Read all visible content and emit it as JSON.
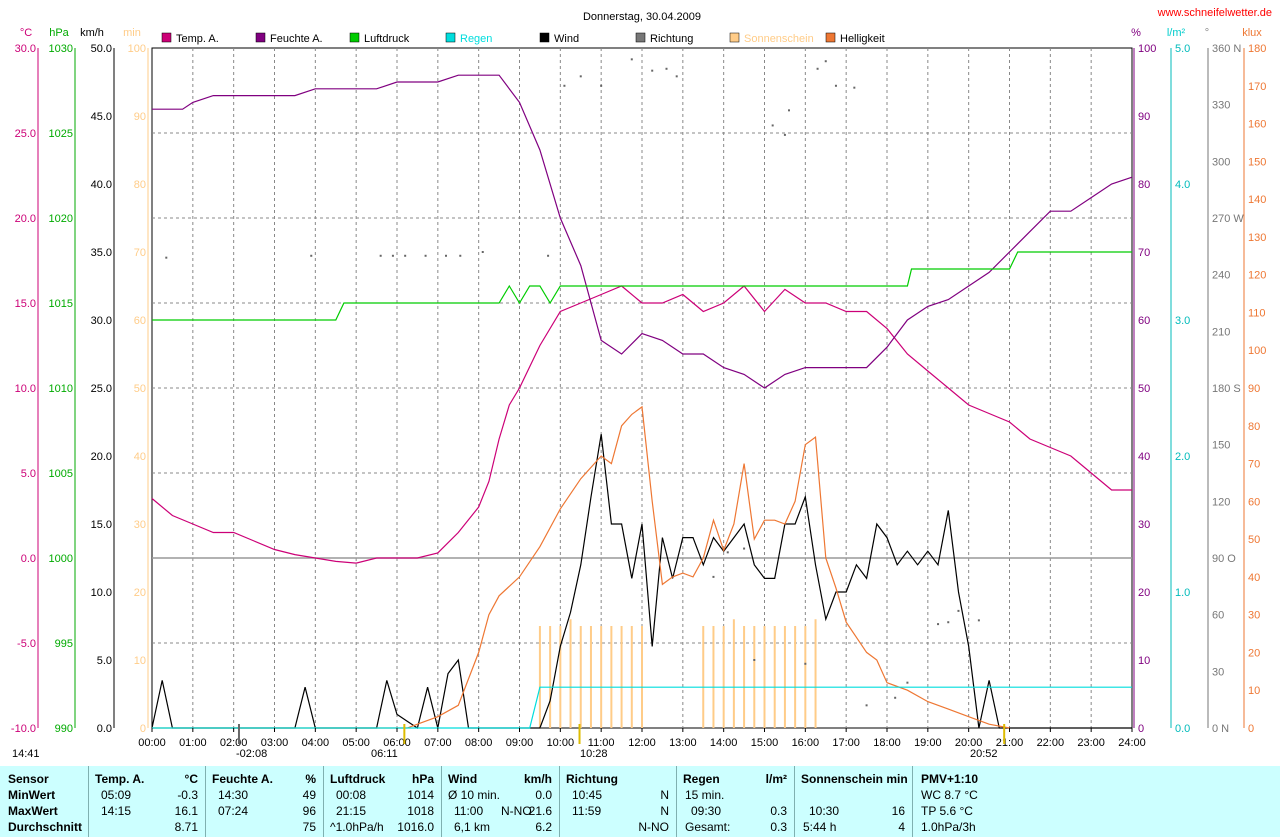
{
  "title": "Donnerstag, 30.04.2009",
  "site": "www.schneifelwetter.de",
  "colors": {
    "temp": "#cc0077",
    "humidity": "#800080",
    "pressure": "#00cc00",
    "rain": "#00dddd",
    "wind": "#000000",
    "direction": "#555555",
    "sunshine": "#ffcc88",
    "brightness": "#ee7733",
    "grid": "#888888"
  },
  "legend": [
    {
      "label": "Temp. A.",
      "color": "#cc0077"
    },
    {
      "label": "Feuchte A.",
      "color": "#800080"
    },
    {
      "label": "Luftdruck",
      "color": "#00cc00"
    },
    {
      "label": "Regen",
      "color": "#00dddd"
    },
    {
      "label": "Wind",
      "color": "#000000"
    },
    {
      "label": "Richtung",
      "color": "#777777"
    },
    {
      "label": "Sonnenschein",
      "color": "#ffcc88"
    },
    {
      "label": "Helligkeit",
      "color": "#ee7733"
    }
  ],
  "axis_units": {
    "temp": "°C",
    "pressure": "hPa",
    "wind": "km/h",
    "sunshine": "min",
    "humidity": "%",
    "rain": "l/m²",
    "direction": "°",
    "brightness": "klux"
  },
  "sun_events": {
    "sunrise": "06:11",
    "sunset": "20:52",
    "moonrise": "-02:08",
    "moonset": "10:28",
    "daylength": "14:41"
  },
  "chart_data": {
    "type": "line",
    "xlabel": "",
    "xticks": [
      "00:00",
      "01:00",
      "02:00",
      "03:00",
      "04:00",
      "05:00",
      "06:00",
      "07:00",
      "08:00",
      "09:00",
      "10:00",
      "11:00",
      "12:00",
      "13:00",
      "14:00",
      "15:00",
      "16:00",
      "17:00",
      "18:00",
      "19:00",
      "20:00",
      "21:00",
      "22:00",
      "23:00",
      "24:00"
    ],
    "xlim": [
      0,
      24
    ],
    "axes": {
      "temp": {
        "min": -10,
        "max": 30,
        "ticks": [
          "30.0",
          "25.0",
          "20.0",
          "15.0",
          "10.0",
          "5.0",
          "0.0",
          "-5.0",
          "-10.0"
        ]
      },
      "pressure": {
        "min": 990,
        "max": 1030,
        "ticks": [
          "1030",
          "1025",
          "1020",
          "1015",
          "1010",
          "1005",
          "1000",
          "995",
          "990"
        ]
      },
      "wind": {
        "min": 0,
        "max": 50,
        "ticks": [
          "50.0",
          "45.0",
          "40.0",
          "35.0",
          "30.0",
          "25.0",
          "20.0",
          "15.0",
          "10.0",
          "5.0",
          "0.0"
        ]
      },
      "sunshine": {
        "min": 0,
        "max": 100,
        "ticks": [
          "100",
          "90",
          "80",
          "70",
          "60",
          "50",
          "40",
          "30",
          "20",
          "10",
          "0"
        ]
      },
      "humidity": {
        "min": 0,
        "max": 100,
        "ticks": [
          "100",
          "90",
          "80",
          "70",
          "60",
          "50",
          "40",
          "30",
          "20",
          "10",
          "0"
        ]
      },
      "rain": {
        "min": 0,
        "max": 5,
        "ticks": [
          "5.0",
          "4.0",
          "3.0",
          "2.0",
          "1.0",
          "0.0"
        ]
      },
      "direction": {
        "min": 0,
        "max": 360,
        "ticks": [
          "360 N",
          "330",
          "300",
          "270 W",
          "240",
          "210",
          "180 S",
          "150",
          "120",
          "90 O",
          "60",
          "30",
          "0 N"
        ]
      },
      "brightness": {
        "min": 0,
        "max": 180,
        "ticks": [
          "180",
          "170",
          "160",
          "150",
          "140",
          "130",
          "120",
          "110",
          "100",
          "90",
          "80",
          "70",
          "60",
          "50",
          "40",
          "30",
          "20",
          "10",
          "0"
        ]
      }
    },
    "series": [
      {
        "name": "Temp. A.",
        "axis": "temp",
        "x": [
          0,
          0.5,
          1,
          1.5,
          2,
          2.5,
          3,
          3.5,
          4,
          4.5,
          5,
          5.5,
          6,
          6.5,
          7,
          7.5,
          8,
          8.25,
          8.5,
          8.75,
          9,
          9.5,
          10,
          10.5,
          11,
          11.5,
          12,
          12.5,
          13,
          13.5,
          14,
          14.5,
          15,
          15.5,
          16,
          16.5,
          17,
          17.5,
          18,
          18.5,
          19,
          19.5,
          20,
          20.5,
          21,
          21.5,
          22,
          22.5,
          23,
          23.5,
          24
        ],
        "y": [
          3.5,
          2.5,
          2.0,
          1.5,
          1.5,
          1.0,
          0.5,
          0.2,
          0.0,
          -0.2,
          -0.3,
          0.0,
          0.0,
          0.0,
          0.3,
          1.5,
          3.0,
          4.5,
          7.0,
          9.0,
          10.0,
          12.5,
          14.5,
          15.0,
          15.5,
          16.0,
          15.0,
          15.0,
          15.5,
          14.5,
          15.0,
          16.0,
          14.5,
          15.8,
          15.0,
          15.0,
          14.5,
          14.5,
          13.5,
          12.0,
          11.0,
          10.0,
          9.0,
          8.5,
          8.0,
          7.0,
          6.5,
          6.0,
          5.0,
          4.0,
          4.0
        ]
      },
      {
        "name": "Feuchte A.",
        "axis": "humidity",
        "x": [
          0,
          0.75,
          1,
          1.5,
          2,
          3,
          3.5,
          4,
          5,
          5.5,
          6,
          6.5,
          7,
          7.5,
          8,
          8.5,
          9,
          9.5,
          10,
          10.5,
          11,
          11.5,
          12,
          12.5,
          13,
          13.5,
          14,
          14.5,
          15,
          15.5,
          16,
          16.5,
          17,
          17.5,
          18,
          18.5,
          19,
          19.5,
          20,
          20.5,
          21,
          21.5,
          22,
          22.5,
          23,
          23.5,
          24
        ],
        "y": [
          91,
          91,
          92,
          93,
          93,
          93,
          93,
          94,
          94,
          94,
          95,
          95,
          95,
          96,
          96,
          96,
          92,
          85,
          75,
          68,
          57,
          55,
          58,
          57,
          55,
          55,
          53,
          52,
          50,
          52,
          53,
          53,
          53,
          53,
          56,
          60,
          62,
          63,
          65,
          67,
          70,
          73,
          76,
          76,
          78,
          80,
          81
        ]
      },
      {
        "name": "Luftdruck",
        "axis": "pressure",
        "x": [
          0,
          4.5,
          4.7,
          8.5,
          8.75,
          9,
          9.25,
          9.5,
          9.75,
          10,
          10.5,
          18.5,
          18.6,
          21,
          21.2,
          24
        ],
        "y": [
          1014,
          1014,
          1015,
          1015,
          1016,
          1015,
          1016,
          1016,
          1015,
          1016,
          1016,
          1016,
          1017,
          1017,
          1018,
          1018
        ]
      },
      {
        "name": "Wind",
        "axis": "wind",
        "x": [
          0,
          0.25,
          0.5,
          0.75,
          1,
          3.5,
          3.75,
          4,
          4.25,
          5.5,
          5.75,
          6,
          6.25,
          6.5,
          6.75,
          7,
          7.25,
          7.5,
          7.75,
          8,
          9.5,
          9.75,
          10,
          10.25,
          10.5,
          10.75,
          11,
          11.25,
          11.5,
          11.75,
          12,
          12.25,
          12.5,
          12.75,
          13,
          13.25,
          13.5,
          13.75,
          14,
          14.25,
          14.5,
          14.75,
          15,
          15.25,
          15.5,
          15.75,
          16,
          16.25,
          16.5,
          16.75,
          17,
          17.25,
          17.5,
          17.75,
          18,
          18.25,
          18.5,
          18.75,
          19,
          19.25,
          19.5,
          19.75,
          20,
          20.25,
          20.5,
          20.75,
          21,
          21.25,
          24
        ],
        "y": [
          0,
          3.5,
          0,
          0,
          0,
          0,
          3,
          0,
          0,
          0,
          3.5,
          1,
          0.5,
          0,
          3,
          0,
          4,
          5,
          0,
          0,
          0,
          2,
          6,
          8.5,
          12,
          17,
          21.6,
          15,
          15,
          11,
          15,
          6,
          14,
          11,
          14,
          14,
          12,
          14,
          13,
          14,
          15,
          12,
          11,
          11,
          15,
          15,
          17,
          12,
          8,
          10,
          10,
          12,
          11,
          15,
          14,
          12,
          13,
          12,
          13,
          12,
          16,
          10,
          6,
          0,
          3.5,
          0,
          0,
          0,
          0
        ]
      },
      {
        "name": "Helligkeit",
        "axis": "brightness",
        "x": [
          0,
          6.25,
          6.5,
          7,
          7.5,
          8,
          8.25,
          8.5,
          9,
          9.5,
          10,
          10.5,
          11,
          11.25,
          11.5,
          11.75,
          12,
          12.25,
          12.5,
          12.75,
          13,
          13.25,
          13.5,
          13.75,
          14,
          14.25,
          14.5,
          14.75,
          15,
          15.25,
          15.5,
          15.75,
          16,
          16.25,
          16.5,
          16.75,
          17,
          17.25,
          17.5,
          17.75,
          18,
          18.5,
          19,
          19.5,
          20,
          20.5,
          21
        ],
        "y": [
          0,
          0,
          1,
          3,
          6,
          20,
          30,
          35,
          40,
          48,
          58,
          66,
          72,
          70,
          80,
          83,
          85,
          60,
          38,
          40,
          41,
          40,
          45,
          55,
          47,
          54,
          70,
          50,
          55,
          55,
          54,
          60,
          75,
          77,
          45,
          37,
          28,
          24,
          20,
          18,
          12,
          10,
          7,
          5,
          3,
          1,
          0
        ]
      },
      {
        "name": "Regen",
        "axis": "rain",
        "x": [
          0,
          9.25,
          9.5,
          24
        ],
        "y": [
          0,
          0,
          0.3,
          0.3
        ]
      }
    ],
    "sunshine_bars": {
      "x": [
        9.5,
        9.75,
        10,
        10.25,
        10.5,
        10.75,
        11,
        11.25,
        11.5,
        11.75,
        12,
        13.5,
        13.75,
        14,
        14.25,
        14.5,
        14.75,
        15,
        15.25,
        15.5,
        15.75,
        16,
        16.25
      ],
      "y": [
        15,
        15,
        15,
        16,
        15,
        15,
        15,
        15,
        15,
        15,
        15,
        15,
        15,
        15,
        16,
        15,
        15,
        15,
        15,
        15,
        15,
        15,
        16
      ]
    },
    "direction_points": {
      "x": [
        0.35,
        3.9,
        5.6,
        5.9,
        6.2,
        6.7,
        7.2,
        7.55,
        8.1,
        9.7,
        10.1,
        10.5,
        11,
        11.75,
        12.25,
        12.6,
        12.85,
        13.75,
        14.1,
        14.5,
        14.75,
        15.2,
        15.5,
        15.6,
        16,
        16.3,
        16.5,
        16.75,
        17.2,
        17.5,
        18.2,
        18.5,
        19.25,
        19.5,
        19.75,
        20.25
      ],
      "y": [
        249,
        250,
        250,
        250,
        250,
        250,
        250,
        250,
        252,
        250,
        340,
        345,
        340,
        354,
        348,
        349,
        345,
        80,
        93,
        95,
        36,
        319,
        314,
        327,
        34,
        349,
        353,
        340,
        339,
        12,
        16,
        24,
        55,
        56,
        62,
        57
      ]
    }
  },
  "stats": {
    "row_labels": [
      "Sensor",
      "MinWert",
      "MaxWert",
      "Durchschnitt"
    ],
    "temp": {
      "head": "Temp. A.",
      "unit": "°C",
      "min_time": "05:09",
      "min": "-0.3",
      "max_time": "14:15",
      "max": "16.1",
      "avg": "8.71"
    },
    "humidity": {
      "head": "Feuchte A.",
      "unit": "%",
      "min_time": "14:30",
      "min": "49",
      "max_time": "07:24",
      "max": "96",
      "avg": "75"
    },
    "pressure": {
      "head": "Luftdruck",
      "unit": "hPa",
      "min_time": "00:08",
      "min": "1014",
      "max_time": "21:15",
      "max": "1018",
      "trend": "^1.0hPa/h",
      "avg": "1016.0"
    },
    "wind": {
      "head": "Wind",
      "unit": "km/h",
      "min_label": "Ø 10 min.",
      "min": "0.0",
      "max_time": "11:00",
      "max_dir": "N-NO",
      "max": "21.6",
      "dist": "6,1 km",
      "avg": "6.2"
    },
    "direction": {
      "head": "Richtung",
      "min_time": "10:45",
      "min": "N",
      "max_time": "11:59",
      "max": "N",
      "avg": "N-NO"
    },
    "rain": {
      "head": "Regen",
      "unit": "l/m²",
      "r1_label": "15 min.",
      "r2_time": "09:30",
      "r2": "0.3",
      "total_label": "Gesamt:",
      "total": "0.3"
    },
    "sun": {
      "head": "Sonnenschein min",
      "r2_time": "10:30",
      "r2": "16",
      "r3_time": "5:44 h",
      "r3": "4"
    },
    "pmv": {
      "head": "PMV+1:10",
      "wc": "WC 8.7 °C",
      "tp": "TP 5.6 °C",
      "trend": "1.0hPa/3h"
    }
  }
}
